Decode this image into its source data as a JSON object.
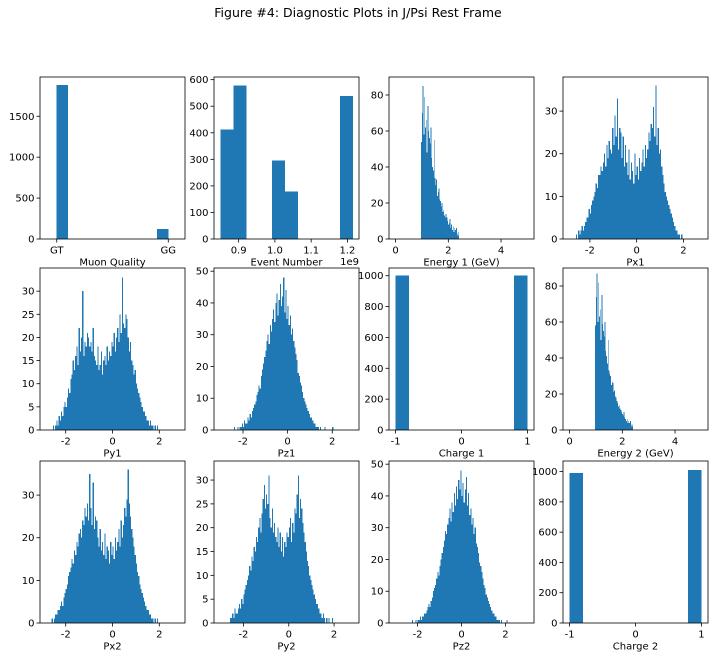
{
  "figure": {
    "title": "Figure #4: Diagnostic Plots in J/Psi Rest Frame"
  },
  "chart_data": [
    {
      "type": "bar",
      "xlabel": "Muon Quality",
      "bar_color": "#1f77b4",
      "xlim": [
        -0.15,
        1.15
      ],
      "ylim": [
        0,
        1980
      ],
      "xticks": [
        {
          "v": 0,
          "label": "GT"
        },
        {
          "v": 1,
          "label": "GG"
        }
      ],
      "yticks": [
        0,
        500,
        1000,
        1500
      ],
      "bins": [
        [
          0,
          0.1,
          1880
        ],
        [
          0.9,
          1.0,
          120
        ]
      ]
    },
    {
      "type": "bar",
      "xlabel": "Event Number",
      "offset_text": "1e9",
      "bar_color": "#1f77b4",
      "xlim": [
        0.832,
        1.232
      ],
      "ylim": [
        0,
        610
      ],
      "xticks": [
        {
          "v": 0.9,
          "label": "0.9"
        },
        {
          "v": 1.0,
          "label": "1.0"
        },
        {
          "v": 1.1,
          "label": "1.1"
        },
        {
          "v": 1.2,
          "label": "1.2"
        }
      ],
      "yticks": [
        0,
        100,
        200,
        300,
        400,
        500,
        600
      ],
      "bins": [
        [
          0.85,
          0.886,
          412
        ],
        [
          0.886,
          0.922,
          578
        ],
        [
          0.992,
          1.028,
          295
        ],
        [
          1.028,
          1.064,
          178
        ],
        [
          1.179,
          1.215,
          538
        ]
      ]
    },
    {
      "type": "histogram",
      "xlabel": "Energy 1 (GeV)",
      "bar_color": "#1f77b4",
      "xlim": [
        -0.25,
        5.25
      ],
      "ylim": [
        0,
        90
      ],
      "xticks": [
        0,
        2,
        4
      ],
      "yticks": [
        0,
        20,
        40,
        60,
        80
      ],
      "bin_start": 0.97,
      "bin_width": 0.03,
      "counts": [
        54,
        70,
        85,
        58,
        79,
        62,
        66,
        48,
        74,
        60,
        56,
        53,
        62,
        45,
        40,
        38,
        55,
        34,
        30,
        33,
        24,
        26,
        28,
        22,
        21,
        18,
        20,
        15,
        16,
        13,
        12,
        14,
        12,
        10,
        8,
        9,
        11,
        6,
        8,
        5,
        7,
        4,
        6,
        5,
        6,
        3,
        2,
        4
      ]
    },
    {
      "type": "histogram",
      "xlabel": "Px1",
      "bar_color": "#1f77b4",
      "xlim": [
        -3.15,
        3.05
      ],
      "ylim": [
        0,
        38
      ],
      "xticks": [
        -2,
        0,
        2
      ],
      "yticks": [
        0,
        10,
        20,
        30
      ],
      "bin_start": -2.6,
      "bin_width": 0.05,
      "counts": [
        1,
        0,
        2,
        1,
        2,
        3,
        2,
        3,
        4,
        5,
        5,
        7,
        6,
        8,
        9,
        10,
        11,
        13,
        12,
        15,
        15,
        17,
        16,
        18,
        20,
        17,
        22,
        19,
        23,
        21,
        20,
        26,
        22,
        29,
        24,
        33,
        21,
        26,
        25,
        19,
        24,
        17,
        22,
        18,
        15,
        21,
        14,
        18,
        16,
        13,
        20,
        15,
        17,
        14,
        19,
        16,
        18,
        21,
        17,
        22,
        19,
        21,
        25,
        23,
        27,
        26,
        31,
        24,
        36,
        22,
        26,
        20,
        21,
        17,
        15,
        13,
        11,
        10,
        9,
        8,
        7,
        6,
        5,
        4,
        3,
        2,
        2,
        1,
        1,
        0,
        1
      ]
    },
    {
      "type": "histogram",
      "xlabel": "Py1",
      "bar_color": "#1f77b4",
      "xlim": [
        -3.1,
        3.1
      ],
      "ylim": [
        0,
        35
      ],
      "xticks": [
        -2,
        0,
        2
      ],
      "yticks": [
        0,
        5,
        10,
        15,
        20,
        25,
        30
      ],
      "bin_start": -2.6,
      "bin_width": 0.05,
      "counts": [
        0,
        1,
        0,
        1,
        2,
        1,
        3,
        2,
        4,
        3,
        5,
        6,
        5,
        7,
        9,
        8,
        11,
        12,
        15,
        13,
        16,
        18,
        14,
        22,
        17,
        20,
        30,
        16,
        19,
        18,
        21,
        20,
        18,
        19,
        17,
        22,
        16,
        15,
        14,
        18,
        13,
        14,
        17,
        12,
        15,
        16,
        14,
        18,
        15,
        17,
        16,
        19,
        18,
        21,
        17,
        20,
        22,
        19,
        25,
        21,
        33,
        23,
        22,
        25,
        24,
        20,
        17,
        19,
        15,
        14,
        12,
        13,
        10,
        9,
        8,
        7,
        6,
        5,
        4,
        4,
        3,
        2,
        2,
        1,
        2,
        1,
        1,
        0,
        1,
        0,
        1
      ]
    },
    {
      "type": "histogram",
      "xlabel": "Pz1",
      "bar_color": "#1f77b4",
      "xlim": [
        -3.3,
        3.2
      ],
      "ylim": [
        0,
        51
      ],
      "xticks": [
        -2,
        0,
        2
      ],
      "yticks": [
        0,
        10,
        20,
        30,
        40,
        50
      ],
      "bin_start": -2.5,
      "bin_width": 0.05,
      "counts": [
        0,
        0,
        1,
        0,
        0,
        1,
        0,
        1,
        1,
        2,
        1,
        3,
        2,
        2,
        4,
        3,
        5,
        4,
        6,
        7,
        8,
        9,
        11,
        12,
        14,
        13,
        17,
        19,
        21,
        23,
        25,
        28,
        30,
        27,
        33,
        31,
        35,
        38,
        34,
        40,
        43,
        36,
        41,
        46,
        39,
        42,
        48,
        37,
        44,
        35,
        39,
        33,
        36,
        30,
        32,
        28,
        26,
        24,
        22,
        18,
        17,
        15,
        14,
        12,
        10,
        9,
        8,
        7,
        6,
        5,
        4,
        4,
        3,
        2,
        2,
        1,
        1,
        1,
        0,
        1,
        0,
        0,
        0,
        1,
        0,
        0,
        0,
        0,
        0,
        0,
        1
      ]
    },
    {
      "type": "bar",
      "xlabel": "Charge 1",
      "bar_color": "#1f77b4",
      "xlim": [
        -1.1,
        1.1
      ],
      "ylim": [
        0,
        1050
      ],
      "xticks": [
        -1,
        0,
        1
      ],
      "yticks": [
        0,
        200,
        400,
        600,
        800,
        1000
      ],
      "bins": [
        [
          -1,
          -0.8,
          1000
        ],
        [
          0.8,
          1,
          1000
        ]
      ]
    },
    {
      "type": "histogram",
      "xlabel": "Energy 2 (GeV)",
      "bar_color": "#1f77b4",
      "xlim": [
        -0.25,
        5.25
      ],
      "ylim": [
        0,
        90
      ],
      "xticks": [
        0,
        2,
        4
      ],
      "yticks": [
        0,
        20,
        40,
        60,
        80
      ],
      "bin_start": 0.97,
      "bin_width": 0.03,
      "counts": [
        58,
        74,
        87,
        60,
        82,
        63,
        67,
        50,
        75,
        59,
        55,
        52,
        60,
        44,
        41,
        37,
        50,
        33,
        31,
        30,
        25,
        27,
        26,
        21,
        22,
        19,
        18,
        16,
        15,
        13,
        14,
        12,
        11,
        10,
        9,
        8,
        10,
        7,
        6,
        5,
        6,
        4,
        5,
        4,
        5,
        3,
        2,
        3
      ]
    },
    {
      "type": "histogram",
      "xlabel": "Px2",
      "bar_color": "#1f77b4",
      "xlim": [
        -3.1,
        3.1
      ],
      "ylim": [
        0,
        38
      ],
      "xticks": [
        -2,
        0,
        2
      ],
      "yticks": [
        0,
        10,
        20,
        30
      ],
      "bin_start": -2.6,
      "bin_width": 0.05,
      "counts": [
        1,
        0,
        1,
        2,
        2,
        3,
        3,
        4,
        5,
        4,
        6,
        7,
        8,
        9,
        11,
        12,
        13,
        15,
        14,
        17,
        16,
        19,
        18,
        21,
        22,
        20,
        24,
        23,
        27,
        25,
        28,
        24,
        35,
        27,
        23,
        33,
        22,
        25,
        24,
        20,
        18,
        22,
        17,
        19,
        16,
        21,
        15,
        18,
        17,
        14,
        19,
        16,
        18,
        15,
        20,
        17,
        19,
        22,
        18,
        24,
        20,
        23,
        27,
        25,
        29,
        36,
        28,
        25,
        22,
        20,
        18,
        16,
        14,
        12,
        11,
        9,
        8,
        7,
        6,
        5,
        4,
        3,
        3,
        2,
        2,
        1,
        1,
        0,
        1,
        0,
        1
      ]
    },
    {
      "type": "histogram",
      "xlabel": "Py2",
      "bar_color": "#1f77b4",
      "xlim": [
        -3.3,
        3.1
      ],
      "ylim": [
        0,
        34
      ],
      "xticks": [
        -2,
        0,
        2
      ],
      "yticks": [
        0,
        5,
        10,
        15,
        20,
        25,
        30
      ],
      "bin_start": -2.6,
      "bin_width": 0.05,
      "counts": [
        1,
        1,
        2,
        1,
        3,
        2,
        2,
        3,
        4,
        3,
        5,
        4,
        6,
        7,
        8,
        9,
        10,
        12,
        11,
        14,
        13,
        16,
        15,
        18,
        17,
        20,
        22,
        19,
        23,
        26,
        29,
        24,
        27,
        25,
        31,
        22,
        20,
        24,
        19,
        21,
        18,
        17,
        20,
        16,
        19,
        15,
        18,
        14,
        17,
        16,
        19,
        18,
        20,
        22,
        17,
        21,
        19,
        24,
        23,
        27,
        31,
        22,
        26,
        24,
        21,
        19,
        17,
        15,
        13,
        12,
        10,
        9,
        8,
        7,
        6,
        5,
        4,
        4,
        3,
        2,
        2,
        1,
        2,
        1,
        0,
        1,
        0,
        1,
        0,
        0,
        1
      ]
    },
    {
      "type": "histogram",
      "xlabel": "Pz2",
      "bar_color": "#1f77b4",
      "xlim": [
        -3.3,
        3.3
      ],
      "ylim": [
        0,
        51
      ],
      "xticks": [
        -2,
        0,
        2
      ],
      "yticks": [
        0,
        10,
        20,
        30,
        40,
        50
      ],
      "bin_start": -2.3,
      "bin_width": 0.05,
      "counts": [
        0,
        1,
        0,
        0,
        1,
        0,
        1,
        1,
        2,
        1,
        2,
        2,
        3,
        3,
        4,
        5,
        6,
        5,
        7,
        8,
        10,
        11,
        12,
        14,
        16,
        15,
        18,
        20,
        22,
        24,
        26,
        29,
        28,
        31,
        33,
        36,
        32,
        38,
        35,
        41,
        37,
        43,
        39,
        45,
        42,
        48,
        40,
        44,
        38,
        42,
        46,
        37,
        41,
        34,
        36,
        31,
        33,
        28,
        30,
        25,
        24,
        22,
        19,
        18,
        16,
        14,
        12,
        11,
        9,
        8,
        7,
        6,
        5,
        4,
        3,
        3,
        2,
        2,
        1,
        1,
        1,
        0,
        1,
        0,
        0,
        0,
        0,
        1
      ]
    },
    {
      "type": "bar",
      "xlabel": "Charge 2",
      "bar_color": "#1f77b4",
      "xlim": [
        -1.1,
        1.1
      ],
      "ylim": [
        0,
        1070
      ],
      "xticks": [
        -1,
        0,
        1
      ],
      "yticks": [
        0,
        200,
        400,
        600,
        800,
        1000
      ],
      "bins": [
        [
          -1,
          -0.8,
          990
        ],
        [
          0.8,
          1,
          1010
        ]
      ]
    }
  ]
}
